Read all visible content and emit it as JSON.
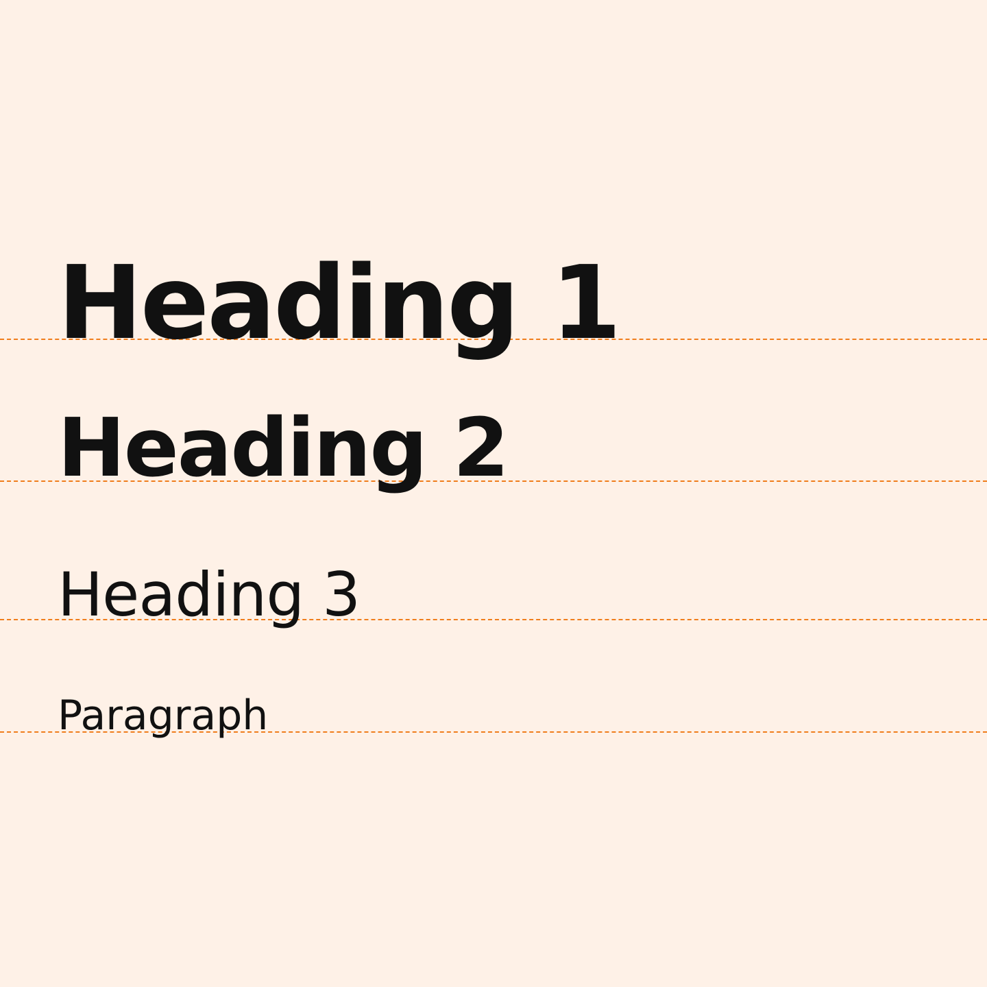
{
  "typography_samples": {
    "heading_1": "Heading 1",
    "heading_2": "Heading 2",
    "heading_3": "Heading 3",
    "paragraph": "Paragraph"
  },
  "colors": {
    "background": "#fef1e7",
    "text": "#111111",
    "baseline_guide": "#f07d1c"
  }
}
